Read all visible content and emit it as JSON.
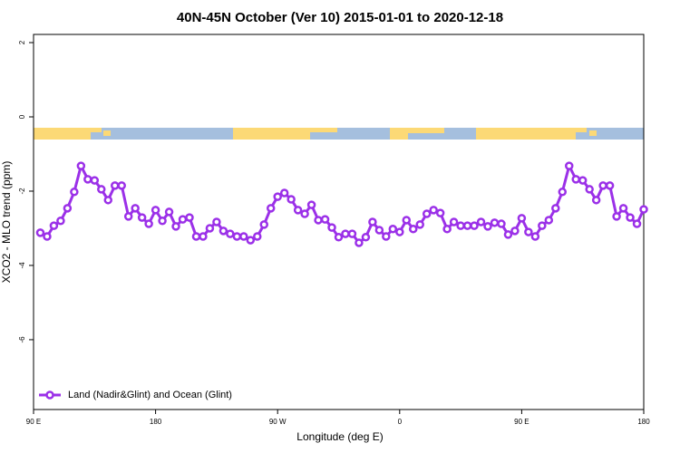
{
  "chart_data": {
    "type": "line",
    "title": "40N-45N October (Ver 10)   2015-01-01 to 2020-12-18",
    "x_label": "Longitude (deg E)",
    "y_label": "XCO2 - MLO trend (ppm)",
    "xlim": [
      90,
      540
    ],
    "ylim": [
      -7.88,
      2.22
    ],
    "xticks": [
      {
        "value": 90,
        "label": "90 E"
      },
      180,
      {
        "value": 270,
        "label": "90 W"
      },
      {
        "value": 360,
        "label": "0"
      },
      {
        "value": 450,
        "label": "90 E"
      },
      {
        "value": 540,
        "label": "180"
      }
    ],
    "yticks": [
      2,
      0,
      -2,
      -4,
      -6
    ],
    "legend": "bottom-left",
    "x": [
      95,
      100,
      105,
      110,
      115,
      120,
      125,
      130,
      135,
      140,
      145,
      150,
      155,
      160,
      165,
      170,
      175,
      180,
      185,
      190,
      195,
      200,
      205,
      210,
      215,
      220,
      225,
      230,
      235,
      240,
      245,
      250,
      255,
      260,
      265,
      270,
      275,
      280,
      285,
      290,
      295,
      300,
      305,
      310,
      315,
      320,
      325,
      330,
      335,
      340,
      345,
      350,
      355,
      360,
      365,
      370,
      375,
      380,
      385,
      390,
      395,
      400,
      405,
      410,
      415,
      420,
      425,
      430,
      435,
      440,
      445,
      450,
      455,
      460,
      465,
      470,
      475,
      480,
      485,
      490,
      495,
      500,
      505,
      510,
      515,
      520,
      525,
      530,
      535,
      540
    ],
    "series": [
      {
        "name": "Land (Nadir&Glint) and Ocean (Glint)",
        "color": "#9b30e8",
        "values": [
          -3.12,
          -3.22,
          -2.93,
          -2.8,
          -2.46,
          -2.02,
          -1.32,
          -1.68,
          -1.71,
          -1.95,
          -2.24,
          -1.85,
          -1.85,
          -2.68,
          -2.46,
          -2.71,
          -2.88,
          -2.51,
          -2.8,
          -2.56,
          -2.95,
          -2.76,
          -2.71,
          -3.22,
          -3.22,
          -3.0,
          -2.83,
          -3.07,
          -3.15,
          -3.22,
          -3.22,
          -3.32,
          -3.22,
          -2.9,
          -2.46,
          -2.15,
          -2.05,
          -2.22,
          -2.51,
          -2.61,
          -2.37,
          -2.78,
          -2.76,
          -2.98,
          -3.24,
          -3.15,
          -3.15,
          -3.39,
          -3.24,
          -2.83,
          -3.05,
          -3.22,
          -3.02,
          -3.1,
          -2.78,
          -3.02,
          -2.9,
          -2.61,
          -2.51,
          -2.59,
          -3.02,
          -2.83,
          -2.93,
          -2.93,
          -2.93,
          -2.83,
          -2.95,
          -2.85,
          -2.88,
          -3.17,
          -3.07,
          -2.73,
          -3.1,
          -3.22,
          -2.93,
          -2.78,
          -2.46,
          -2.02,
          -1.32,
          -1.68,
          -1.71,
          -1.95,
          -2.24,
          -1.85,
          -1.85,
          -2.68,
          -2.46,
          -2.71,
          -2.88,
          -2.49
        ]
      }
    ]
  }
}
